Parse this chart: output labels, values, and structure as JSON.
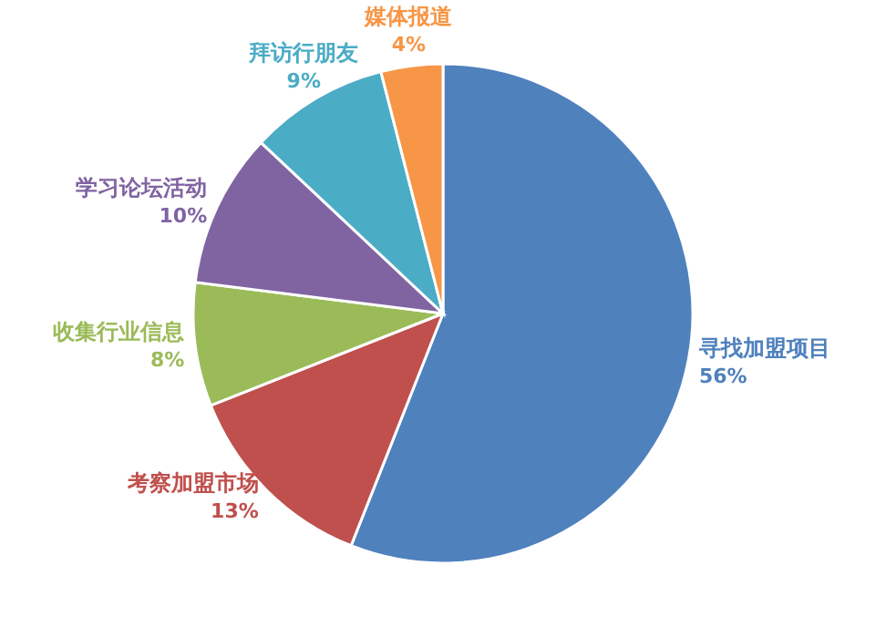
{
  "chart_data": {
    "type": "pie",
    "categories": [
      "寻找加盟项目",
      "考察加盟市场",
      "收集行业信息",
      "学习论坛活动",
      "拜访行朋友",
      "媒体报道"
    ],
    "values": [
      56,
      13,
      8,
      10,
      9,
      4
    ],
    "value_labels": [
      "56%",
      "13%",
      "8%",
      "10%",
      "9%",
      "4%"
    ],
    "colors": [
      "#4f81bd",
      "#c0504d",
      "#9bbb59",
      "#8064a2",
      "#4bacc6",
      "#f79646"
    ]
  }
}
